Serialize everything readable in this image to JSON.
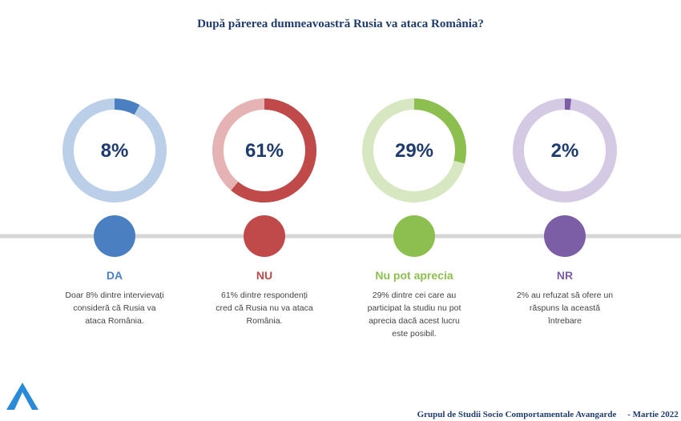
{
  "chart_data": {
    "type": "donut",
    "title": "După părerea dumneavoastră Rusia va ataca România?",
    "categories": [
      "DA",
      "NU",
      "Nu pot aprecia",
      "NR"
    ],
    "values": [
      8,
      61,
      29,
      2
    ],
    "value_labels": [
      "8%",
      "61%",
      "29%",
      "2%"
    ],
    "colors": [
      "#4a7fc1",
      "#c0494a",
      "#8cbf4f",
      "#7c5ea6"
    ],
    "track_colors": [
      "#bccfe9",
      "#e6b3b4",
      "#d6e7c1",
      "#d5cae3"
    ],
    "descriptions": [
      "Doar 8% dintre intervievați consideră că Rusia va ataca România.",
      "61% dintre respondenți cred că Rusia nu va ataca România.",
      "29% dintre cei care au participat la studiu nu pot aprecia dacă acest lucru este posibil.",
      "2% au refuzat să ofere un răspuns la această întrebare"
    ]
  },
  "footer": {
    "org": "Grupul de Studii Socio Comportamentale Avangarde",
    "date": "- Martie 2022"
  }
}
